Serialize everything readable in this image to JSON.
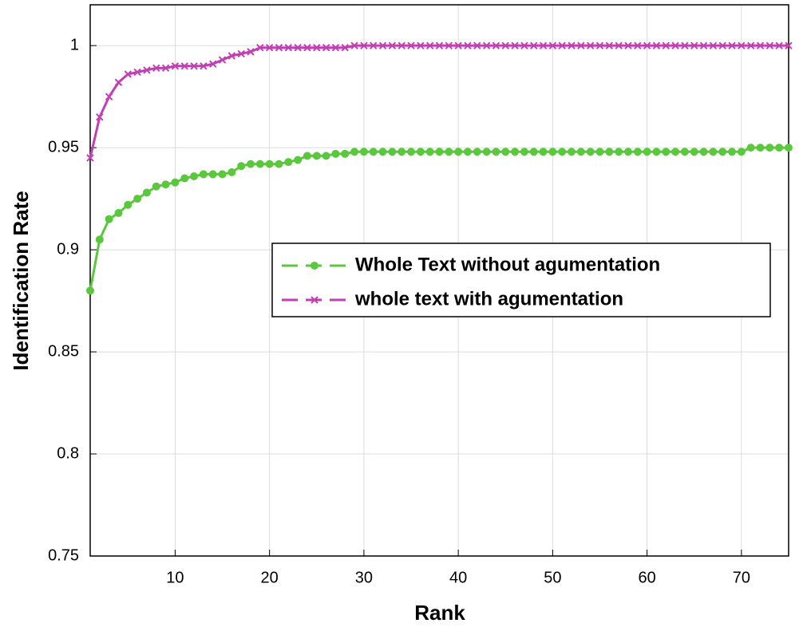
{
  "chart_data": {
    "type": "line",
    "xlabel": "Rank",
    "ylabel": "Identification Rate",
    "x": [
      1,
      2,
      3,
      4,
      5,
      6,
      7,
      8,
      9,
      10,
      11,
      12,
      13,
      14,
      15,
      16,
      17,
      18,
      19,
      20,
      21,
      22,
      23,
      24,
      25,
      26,
      27,
      28,
      29,
      30,
      31,
      32,
      33,
      34,
      35,
      36,
      37,
      38,
      39,
      40,
      41,
      42,
      43,
      44,
      45,
      46,
      47,
      48,
      49,
      50,
      51,
      52,
      53,
      54,
      55,
      56,
      57,
      58,
      59,
      60,
      61,
      62,
      63,
      64,
      65,
      66,
      67,
      68,
      69,
      70,
      71,
      72,
      73,
      74,
      75
    ],
    "series": [
      {
        "name": "Whole Text without agumentation",
        "color": "#5ac83c",
        "marker": "circle",
        "values": [
          0.88,
          0.905,
          0.915,
          0.918,
          0.922,
          0.925,
          0.928,
          0.931,
          0.932,
          0.933,
          0.935,
          0.936,
          0.937,
          0.937,
          0.937,
          0.938,
          0.941,
          0.942,
          0.942,
          0.942,
          0.942,
          0.943,
          0.944,
          0.946,
          0.946,
          0.946,
          0.947,
          0.947,
          0.948,
          0.948,
          0.948,
          0.948,
          0.948,
          0.948,
          0.948,
          0.948,
          0.948,
          0.948,
          0.948,
          0.948,
          0.948,
          0.948,
          0.948,
          0.948,
          0.948,
          0.948,
          0.948,
          0.948,
          0.948,
          0.948,
          0.948,
          0.948,
          0.948,
          0.948,
          0.948,
          0.948,
          0.948,
          0.948,
          0.948,
          0.948,
          0.948,
          0.948,
          0.948,
          0.948,
          0.948,
          0.948,
          0.948,
          0.948,
          0.948,
          0.948,
          0.95,
          0.95,
          0.95,
          0.95,
          0.95
        ]
      },
      {
        "name": "whole text with agumentation",
        "color": "#c23fb3",
        "marker": "x",
        "values": [
          0.945,
          0.965,
          0.975,
          0.982,
          0.986,
          0.987,
          0.988,
          0.989,
          0.989,
          0.99,
          0.99,
          0.99,
          0.99,
          0.991,
          0.993,
          0.995,
          0.996,
          0.997,
          0.999,
          0.999,
          0.999,
          0.999,
          0.999,
          0.999,
          0.999,
          0.999,
          0.999,
          0.999,
          1,
          1,
          1,
          1,
          1,
          1,
          1,
          1,
          1,
          1,
          1,
          1,
          1,
          1,
          1,
          1,
          1,
          1,
          1,
          1,
          1,
          1,
          1,
          1,
          1,
          1,
          1,
          1,
          1,
          1,
          1,
          1,
          1,
          1,
          1,
          1,
          1,
          1,
          1,
          1,
          1,
          1,
          1,
          1,
          1,
          1,
          1
        ]
      }
    ],
    "xlim": [
      1,
      75
    ],
    "xticks": [
      10,
      20,
      30,
      40,
      50,
      60,
      70
    ],
    "ylim": [
      0.75,
      1.02
    ],
    "yticks": [
      0.75,
      0.8,
      0.85,
      0.9,
      0.95,
      1
    ],
    "grid": true,
    "legend": "right"
  }
}
